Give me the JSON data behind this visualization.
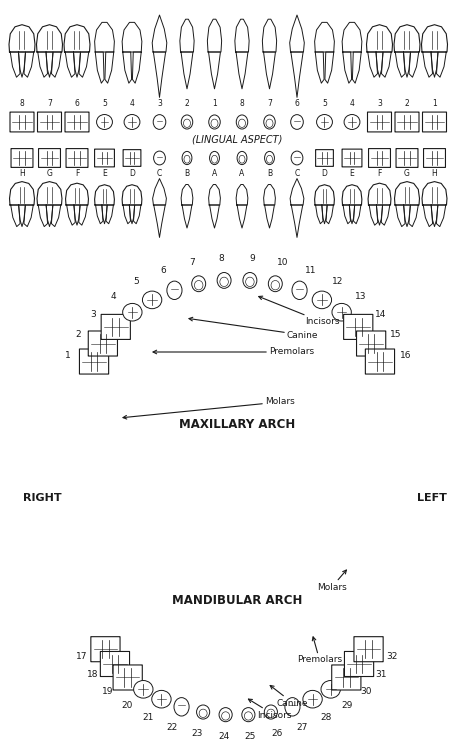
{
  "bg_color": "#ffffff",
  "line_color": "#1a1a1a",
  "text_color": "#1a1a1a",
  "lingual_aspect_text": "(LINGUAL ASPECT)",
  "maxillary_arch_text": "MAXILLARY ARCH",
  "mandibular_arch_text": "MANDIBULAR ARCH",
  "right_text": "RIGHT",
  "left_text": "LEFT",
  "primary_letters": [
    "H",
    "G",
    "F",
    "E",
    "D",
    "C",
    "B",
    "A",
    "A",
    "B",
    "C",
    "D",
    "E",
    "F",
    "G",
    "H"
  ],
  "upper_row_types": [
    "molar",
    "molar",
    "molar",
    "premolar",
    "premolar",
    "canine",
    "incisor",
    "incisor",
    "incisor",
    "incisor",
    "canine",
    "premolar",
    "premolar",
    "molar",
    "molar",
    "molar"
  ],
  "max_tooth_types": [
    "molar",
    "molar",
    "molar",
    "premolar",
    "premolar",
    "canine",
    "incisor",
    "incisor",
    "incisor",
    "incisor",
    "canine",
    "premolar",
    "premolar",
    "molar",
    "molar",
    "molar"
  ],
  "mand_tooth_types": [
    "molar",
    "molar",
    "molar",
    "premolar",
    "premolar",
    "canine",
    "incisor",
    "incisor",
    "incisor",
    "incisor",
    "canine",
    "premolar",
    "premolar",
    "molar",
    "molar",
    "molar"
  ]
}
